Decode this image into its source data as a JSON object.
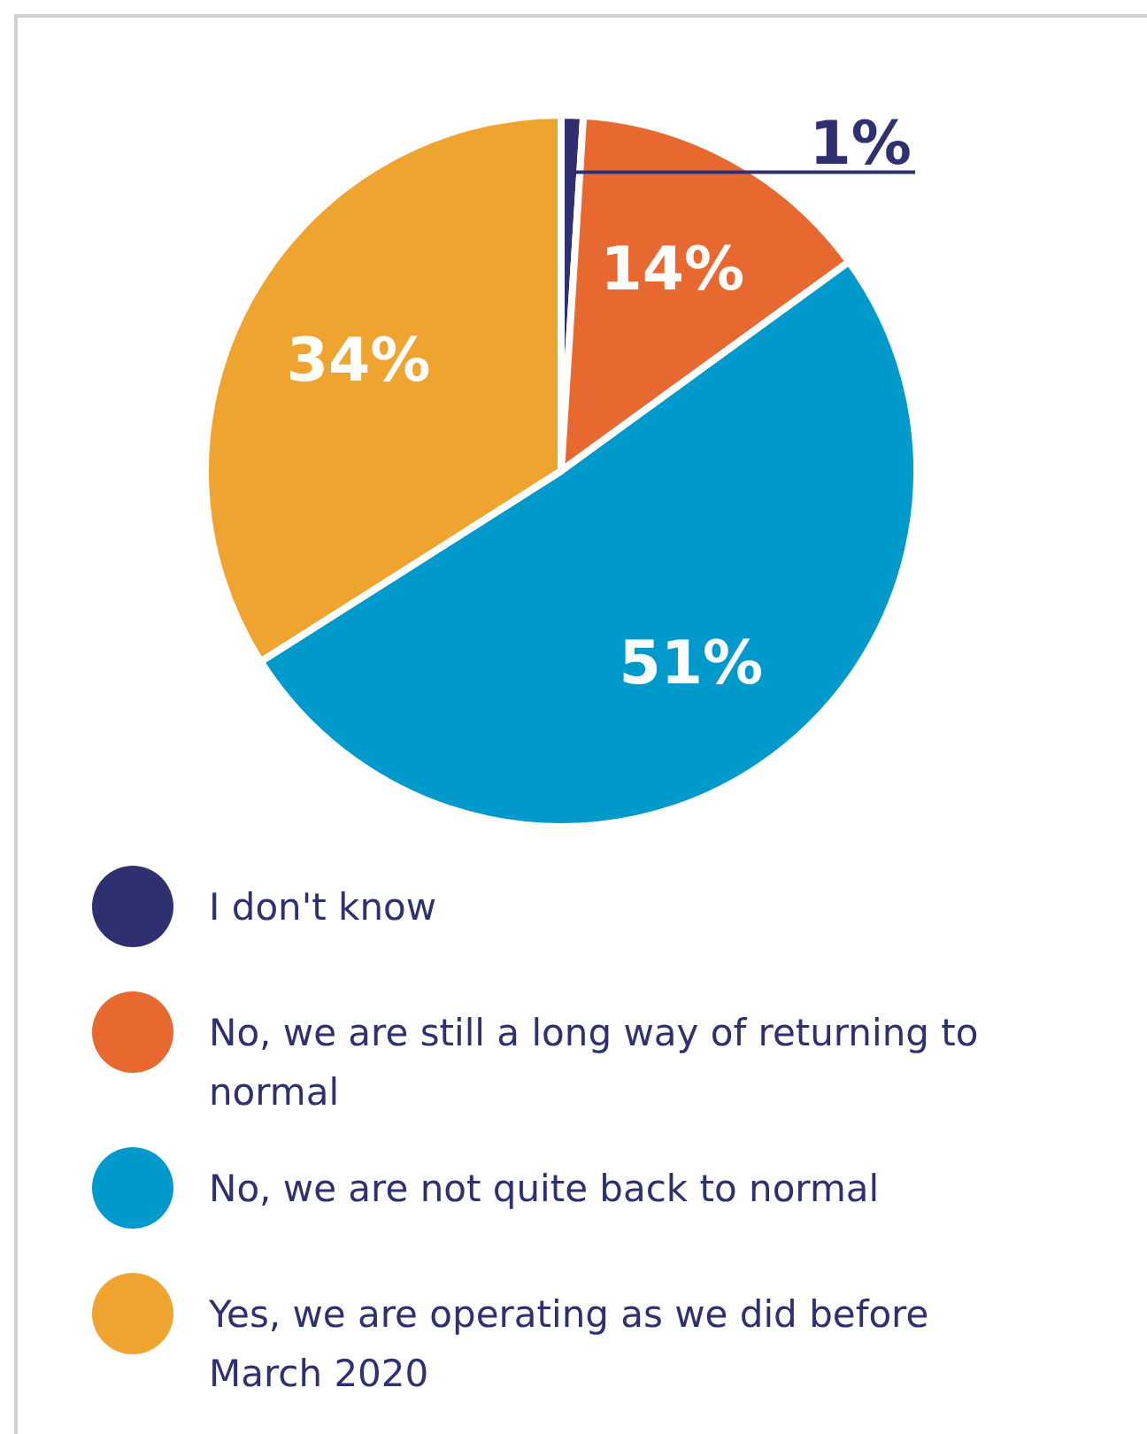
{
  "chart_data": {
    "type": "pie",
    "categories": [
      "I don't know",
      "No, we are still a long way of returning to normal",
      "No, we are not quite back to normal",
      "Yes, we are operating as we did before March 2020"
    ],
    "values": [
      1,
      14,
      51,
      34
    ],
    "colors": [
      "#2e3070",
      "#e8692f",
      "#0099cc",
      "#f0a430"
    ],
    "value_labels": [
      "1%",
      "14%",
      "51%",
      "34%"
    ],
    "legend": "bottom"
  }
}
